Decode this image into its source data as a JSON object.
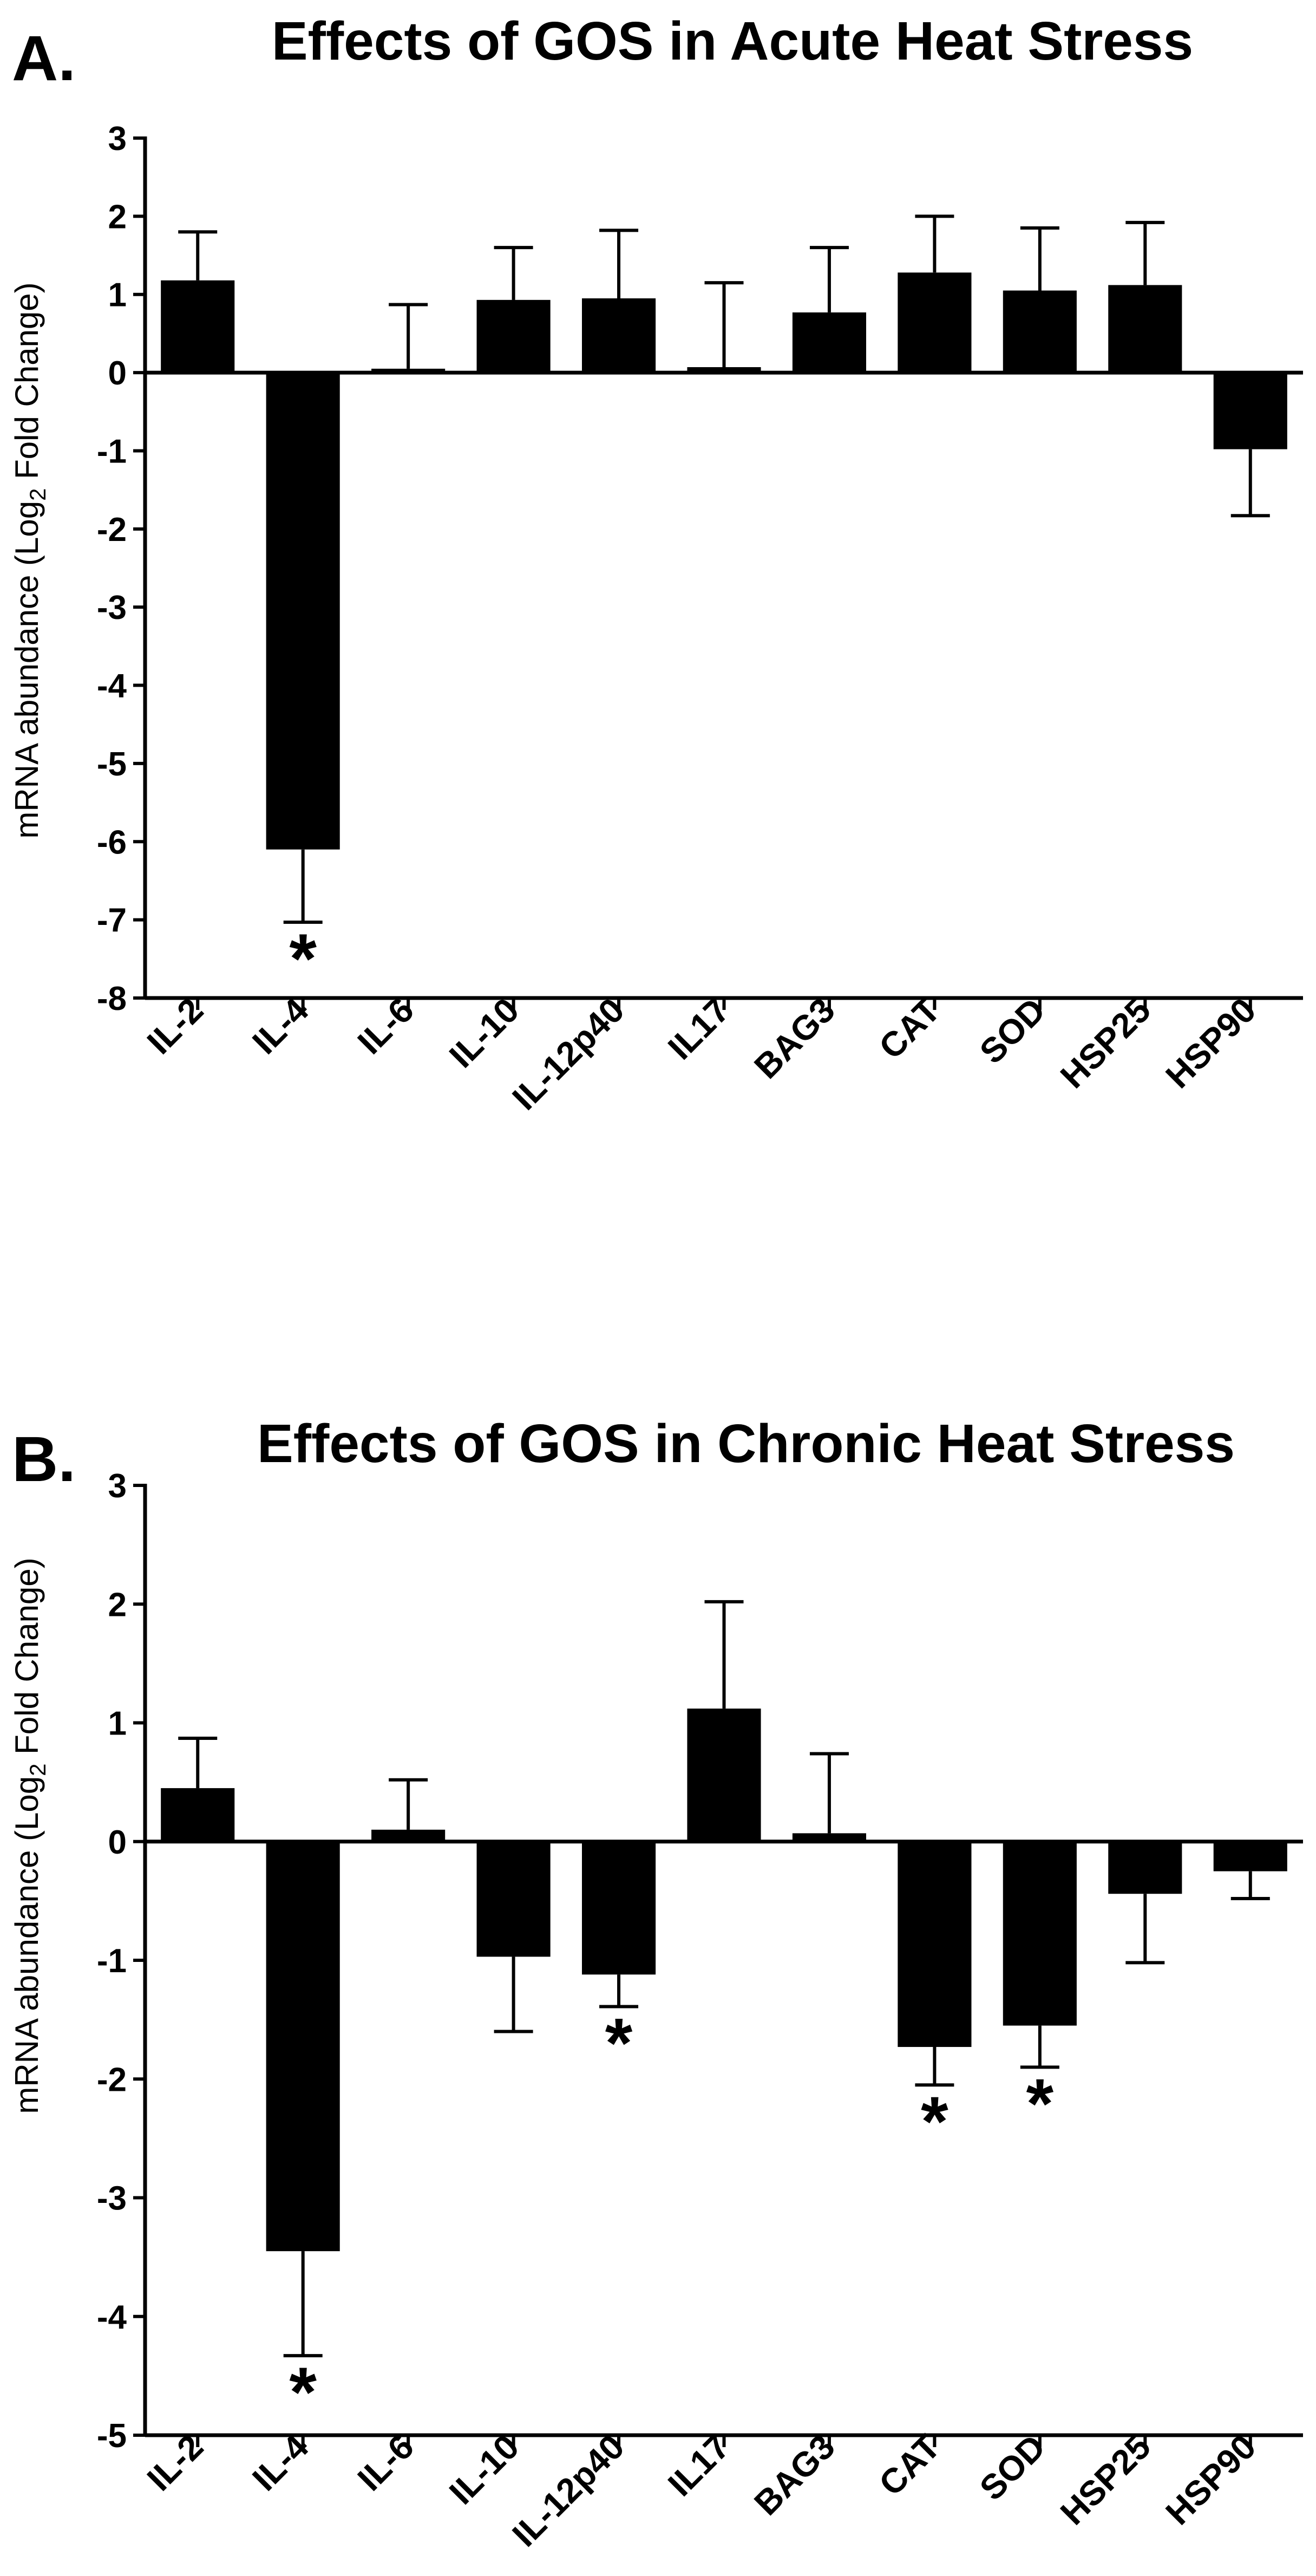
{
  "colors": {
    "bar": "#000000",
    "axis": "#000000",
    "background": "#ffffff"
  },
  "chart_data": [
    {
      "type": "bar",
      "panel_label": "A.",
      "title": "Effects of GOS in Acute Heat Stress",
      "ylabel_main": "mRNA abundance (Log",
      "ylabel_sub": "2",
      "ylabel_end": " Fold Change)",
      "xlabel": "",
      "ylim": [
        -8,
        3
      ],
      "yticks": [
        3,
        2,
        1,
        0,
        -1,
        -2,
        -3,
        -4,
        -5,
        -6,
        -7,
        -8
      ],
      "ytick_labels": [
        "3",
        "2",
        "1",
        "0",
        "-1",
        "-2",
        "-3",
        "-4",
        "-5",
        "-6",
        "-7",
        "-8"
      ],
      "categories": [
        "IL-2",
        "IL-4",
        "IL-6",
        "IL-10",
        "IL-12p40",
        "IL17",
        "BAG3",
        "CAT",
        "SOD",
        "HSP25",
        "HSP90"
      ],
      "values": [
        1.18,
        -6.1,
        0.05,
        0.93,
        0.95,
        0.07,
        0.77,
        1.28,
        1.05,
        1.12,
        -0.98
      ],
      "errors": [
        0.62,
        0.93,
        0.82,
        0.67,
        0.87,
        1.08,
        0.83,
        0.72,
        0.8,
        0.8,
        0.85
      ],
      "significant": [
        "",
        "*",
        "",
        "",
        "",
        "",
        "",
        "",
        "",
        "",
        ""
      ]
    },
    {
      "type": "bar",
      "panel_label": "B.",
      "title": "Effects of GOS in Chronic Heat Stress",
      "ylabel_main": "mRNA abundance (Log",
      "ylabel_sub": "2",
      "ylabel_end": " Fold Change)",
      "xlabel": "",
      "ylim": [
        -5,
        3
      ],
      "yticks": [
        3,
        2,
        1,
        0,
        -1,
        -2,
        -3,
        -4,
        -5
      ],
      "ytick_labels": [
        "3",
        "2",
        "1",
        "0",
        "-1",
        "-2",
        "-3",
        "-4",
        "-5"
      ],
      "categories": [
        "IL-2",
        "IL-4",
        "IL-6",
        "IL-10",
        "IL-12p40",
        "IL17",
        "BAG3",
        "CAT",
        "SOD",
        "HSP25",
        "HSP90"
      ],
      "values": [
        0.45,
        -3.45,
        0.1,
        -0.97,
        -1.12,
        1.12,
        0.07,
        -1.73,
        -1.55,
        -0.44,
        -0.25
      ],
      "errors": [
        0.42,
        0.88,
        0.42,
        0.63,
        0.27,
        0.9,
        0.67,
        0.32,
        0.35,
        0.58,
        0.23
      ],
      "significant": [
        "",
        "*",
        "",
        "",
        "*",
        "",
        "",
        "*",
        "*",
        "",
        ""
      ]
    }
  ]
}
